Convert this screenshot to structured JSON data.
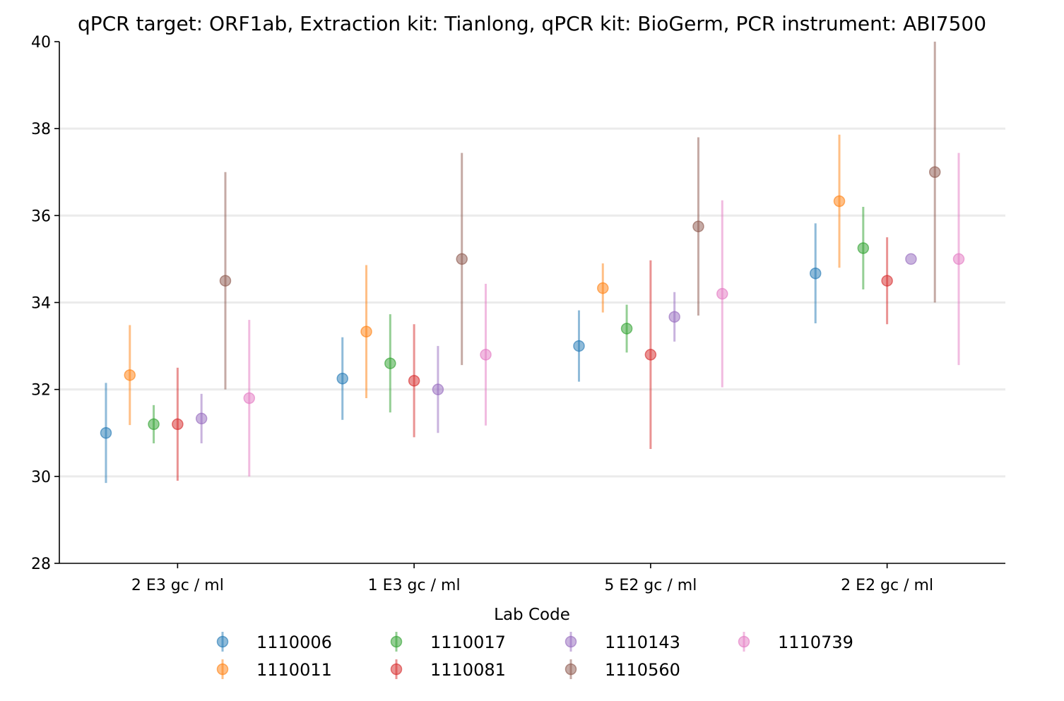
{
  "chart_data": {
    "type": "errorbar",
    "title": "qPCR target: ORF1ab, Extraction kit: Tianlong, qPCR kit: BioGerm, PCR instrument: ABI7500",
    "xlabel": "",
    "ylabel": "",
    "ylim": [
      28,
      40
    ],
    "y_ticks": [
      28,
      30,
      32,
      34,
      36,
      38,
      40
    ],
    "grid": "horizontal",
    "categories": [
      "2 E3 gc / ml",
      "1 E3 gc / ml",
      "5 E2 gc / ml",
      "2 E2 gc / ml"
    ],
    "legend": {
      "title": "Lab Code",
      "placement": "bottom-center",
      "columns": 4
    },
    "series": [
      {
        "name": "1110006",
        "color": "#1f77b4",
        "values": [
          31.0,
          32.25,
          33.0,
          34.67
        ],
        "lower": [
          29.85,
          31.3,
          32.18,
          33.52
        ],
        "upper": [
          32.15,
          33.2,
          33.82,
          35.82
        ]
      },
      {
        "name": "1110011",
        "color": "#ff7f0e",
        "values": [
          32.33,
          33.33,
          34.33,
          36.33
        ],
        "lower": [
          31.18,
          31.8,
          33.77,
          34.8
        ],
        "upper": [
          33.48,
          34.86,
          34.9,
          37.86
        ]
      },
      {
        "name": "1110017",
        "color": "#2ca02c",
        "values": [
          31.2,
          32.6,
          33.4,
          35.25
        ],
        "lower": [
          30.76,
          31.47,
          32.85,
          34.3
        ],
        "upper": [
          31.64,
          33.73,
          33.95,
          36.2
        ]
      },
      {
        "name": "1110081",
        "color": "#d62728",
        "values": [
          31.2,
          32.2,
          32.8,
          34.5
        ],
        "lower": [
          29.9,
          30.9,
          30.63,
          33.5
        ],
        "upper": [
          32.5,
          33.5,
          34.97,
          35.5
        ]
      },
      {
        "name": "1110143",
        "color": "#9467bd",
        "values": [
          31.33,
          32.0,
          33.67,
          35.0
        ],
        "lower": [
          30.76,
          31.0,
          33.1,
          35.0
        ],
        "upper": [
          31.9,
          33.0,
          34.24,
          35.0
        ]
      },
      {
        "name": "1110560",
        "color": "#8c564b",
        "values": [
          34.5,
          35.0,
          35.75,
          37.0
        ],
        "lower": [
          32.0,
          32.56,
          33.7,
          34.0
        ],
        "upper": [
          37.0,
          37.44,
          37.8,
          40.0
        ]
      },
      {
        "name": "1110739",
        "color": "#e377c2",
        "values": [
          31.8,
          32.8,
          34.2,
          35.0
        ],
        "lower": [
          30.0,
          31.17,
          32.05,
          32.56
        ],
        "upper": [
          33.6,
          34.43,
          36.35,
          37.44
        ]
      }
    ]
  }
}
